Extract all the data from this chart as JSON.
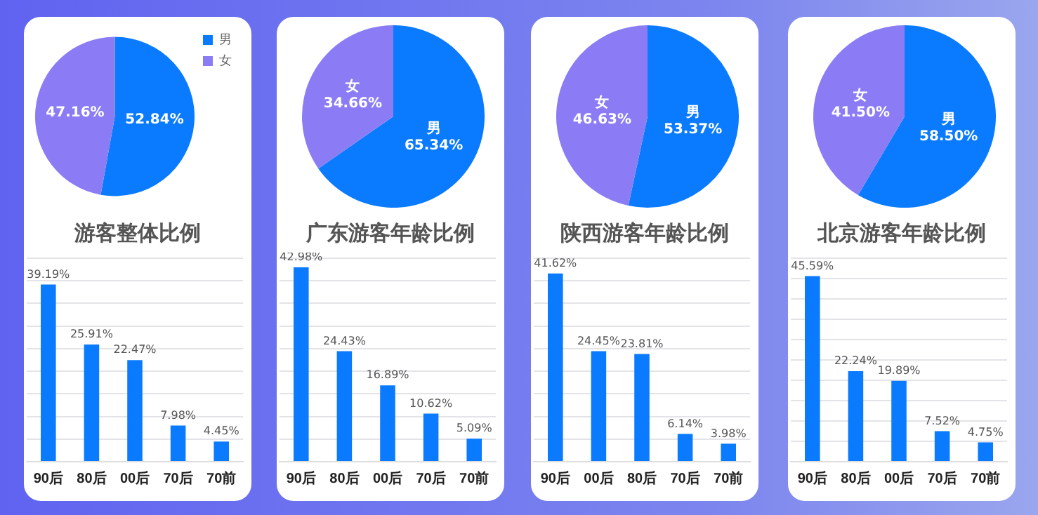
{
  "chart_data": [
    {
      "type": "pie",
      "categories": [
        "男",
        "女"
      ],
      "values": [
        52.84,
        47.16
      ],
      "colors": [
        "#0a7bff",
        "#8b7cf6"
      ],
      "value_labels": [
        "52.84%",
        "47.16%"
      ],
      "legend": "top right"
    },
    {
      "type": "bar",
      "title": "游客整体比例",
      "categories": [
        "90后",
        "80后",
        "00后",
        "70后",
        "70前"
      ],
      "values": [
        39.19,
        25.91,
        22.47,
        7.98,
        4.45
      ],
      "color": "#0a7bff",
      "value_labels": [
        "39.19%",
        "25.91%",
        "22.47%",
        "7.98%",
        "4.45%"
      ],
      "ylim": [
        0,
        45
      ],
      "yticks": [
        {
          "value": 0,
          "label": null
        },
        {
          "value": 5,
          "label": null
        },
        {
          "value": 10,
          "label": null
        },
        {
          "value": 15,
          "label": null
        },
        {
          "value": 20,
          "label": null
        },
        {
          "value": 25,
          "label": null
        },
        {
          "value": 30,
          "label": null
        },
        {
          "value": 35,
          "label": null
        },
        {
          "value": 40,
          "label": null
        },
        {
          "value": 45,
          "label": null
        }
      ],
      "grid": "y",
      "tick_labels": "x"
    },
    {
      "type": "pie",
      "categories": [
        "男",
        "女"
      ],
      "values": [
        65.34,
        34.66
      ],
      "colors": [
        "#0a7bff",
        "#8b7cf6"
      ],
      "value_labels": [
        "65.34%",
        "34.66%"
      ]
    },
    {
      "type": "bar",
      "title": "广东游客年龄比例",
      "categories": [
        "90后",
        "80后",
        "00后",
        "70后",
        "70前"
      ],
      "values": [
        42.98,
        24.43,
        16.89,
        10.62,
        5.09
      ],
      "color": "#0a7bff",
      "value_labels": [
        "42.98%",
        "24.43%",
        "16.89%",
        "10.62%",
        "5.09%"
      ],
      "ylim": [
        0,
        45
      ],
      "yticks": [
        {
          "value": 0,
          "label": null
        },
        {
          "value": 5,
          "label": null
        },
        {
          "value": 10,
          "label": null
        },
        {
          "value": 15,
          "label": null
        },
        {
          "value": 20,
          "label": null
        },
        {
          "value": 25,
          "label": null
        },
        {
          "value": 30,
          "label": null
        },
        {
          "value": 35,
          "label": null
        },
        {
          "value": 40,
          "label": null
        },
        {
          "value": 45,
          "label": null
        }
      ],
      "grid": "y",
      "tick_labels": "x"
    },
    {
      "type": "pie",
      "categories": [
        "男",
        "女"
      ],
      "values": [
        53.37,
        46.63
      ],
      "colors": [
        "#0a7bff",
        "#8b7cf6"
      ],
      "value_labels": [
        "53.37%",
        "46.63%"
      ]
    },
    {
      "type": "bar",
      "title": "陕西游客年龄比例",
      "categories": [
        "90后",
        "00后",
        "80后",
        "70后",
        "70前"
      ],
      "values": [
        41.62,
        24.45,
        23.81,
        6.14,
        3.98
      ],
      "color": "#0a7bff",
      "value_labels": [
        "41.62%",
        "24.45%",
        "23.81%",
        "6.14%",
        "3.98%"
      ],
      "ylim": [
        0,
        45
      ],
      "yticks": [
        {
          "value": 0,
          "label": null
        },
        {
          "value": 5,
          "label": null
        },
        {
          "value": 10,
          "label": null
        },
        {
          "value": 15,
          "label": null
        },
        {
          "value": 20,
          "label": null
        },
        {
          "value": 25,
          "label": null
        },
        {
          "value": 30,
          "label": null
        },
        {
          "value": 35,
          "label": null
        },
        {
          "value": 40,
          "label": null
        },
        {
          "value": 45,
          "label": null
        }
      ],
      "grid": "y",
      "tick_labels": "x"
    },
    {
      "type": "pie",
      "categories": [
        "男",
        "女"
      ],
      "values": [
        58.5,
        41.5
      ],
      "colors": [
        "#0a7bff",
        "#8b7cf6"
      ],
      "value_labels": [
        "58.50%",
        "41.50%"
      ]
    },
    {
      "type": "bar",
      "title": "北京游客年龄比例",
      "categories": [
        "90后",
        "80后",
        "00后",
        "70后",
        "70前"
      ],
      "values": [
        45.59,
        22.24,
        19.89,
        7.52,
        4.75
      ],
      "color": "#0a7bff",
      "value_labels": [
        "45.59%",
        "22.24%",
        "19.89%",
        "7.52%",
        "4.75%"
      ],
      "ylim": [
        0,
        50
      ],
      "yticks": [
        {
          "value": 0,
          "label": null
        },
        {
          "value": 5,
          "label": null
        },
        {
          "value": 10,
          "label": null
        },
        {
          "value": 15,
          "label": null
        },
        {
          "value": 20,
          "label": null
        },
        {
          "value": 25,
          "label": null
        },
        {
          "value": 30,
          "label": null
        },
        {
          "value": 35,
          "label": null
        },
        {
          "value": 40,
          "label": null
        },
        {
          "value": 45,
          "label": null
        },
        {
          "value": 50,
          "label": null
        }
      ],
      "grid": "y",
      "tick_labels": "x"
    }
  ]
}
